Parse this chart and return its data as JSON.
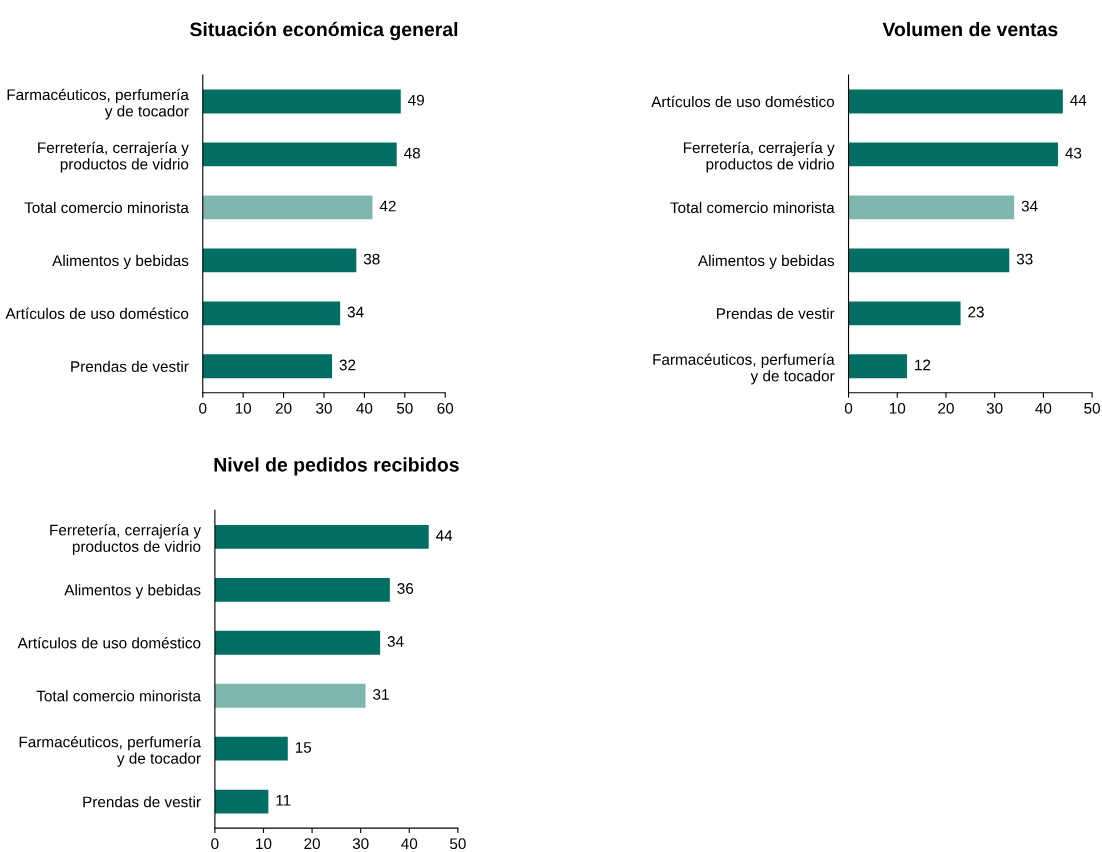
{
  "chart_data": [
    {
      "type": "bar",
      "orientation": "horizontal",
      "title": "Situación económica general",
      "categories": [
        "Farmacéuticos, perfumería\ny de tocador",
        "Ferretería, cerrajería y\nproductos de vidrio",
        "Total comercio minorista",
        "Alimentos y bebidas",
        "Artículos de uso doméstico",
        "Prendas de vestir"
      ],
      "values": [
        49,
        48,
        42,
        38,
        34,
        32
      ],
      "colors": [
        "#006e63",
        "#006e63",
        "#7fb7b0",
        "#006e63",
        "#006e63",
        "#006e63"
      ],
      "xlim": [
        0,
        60
      ],
      "xticks": [
        0,
        10,
        20,
        30,
        40,
        50,
        60
      ],
      "data_labels": true,
      "grid": false,
      "legend": false
    },
    {
      "type": "bar",
      "orientation": "horizontal",
      "title": "Volumen de ventas",
      "categories": [
        "Artículos de uso doméstico",
        "Ferretería, cerrajería y\nproductos de vidrio",
        "Total comercio minorista",
        "Alimentos y bebidas",
        "Prendas de vestir",
        "Farmacéuticos, perfumería\ny de tocador"
      ],
      "values": [
        44,
        43,
        34,
        33,
        23,
        12
      ],
      "colors": [
        "#006e63",
        "#006e63",
        "#7fb7b0",
        "#006e63",
        "#006e63",
        "#006e63"
      ],
      "xlim": [
        0,
        50
      ],
      "xticks": [
        0,
        10,
        20,
        30,
        40,
        50
      ],
      "data_labels": true,
      "grid": false,
      "legend": false
    },
    {
      "type": "bar",
      "orientation": "horizontal",
      "title": "Nivel de pedidos recibidos",
      "categories": [
        "Ferretería, cerrajería y\nproductos de vidrio",
        "Alimentos y bebidas",
        "Artículos de uso doméstico",
        "Total comercio minorista",
        "Farmacéuticos, perfumería\ny de tocador",
        "Prendas de vestir"
      ],
      "values": [
        44,
        36,
        34,
        31,
        15,
        11
      ],
      "colors": [
        "#006e63",
        "#006e63",
        "#006e63",
        "#7fb7b0",
        "#006e63",
        "#006e63"
      ],
      "xlim": [
        0,
        50
      ],
      "xticks": [
        0,
        10,
        20,
        30,
        40,
        50
      ],
      "data_labels": true,
      "grid": false,
      "legend": false
    }
  ]
}
